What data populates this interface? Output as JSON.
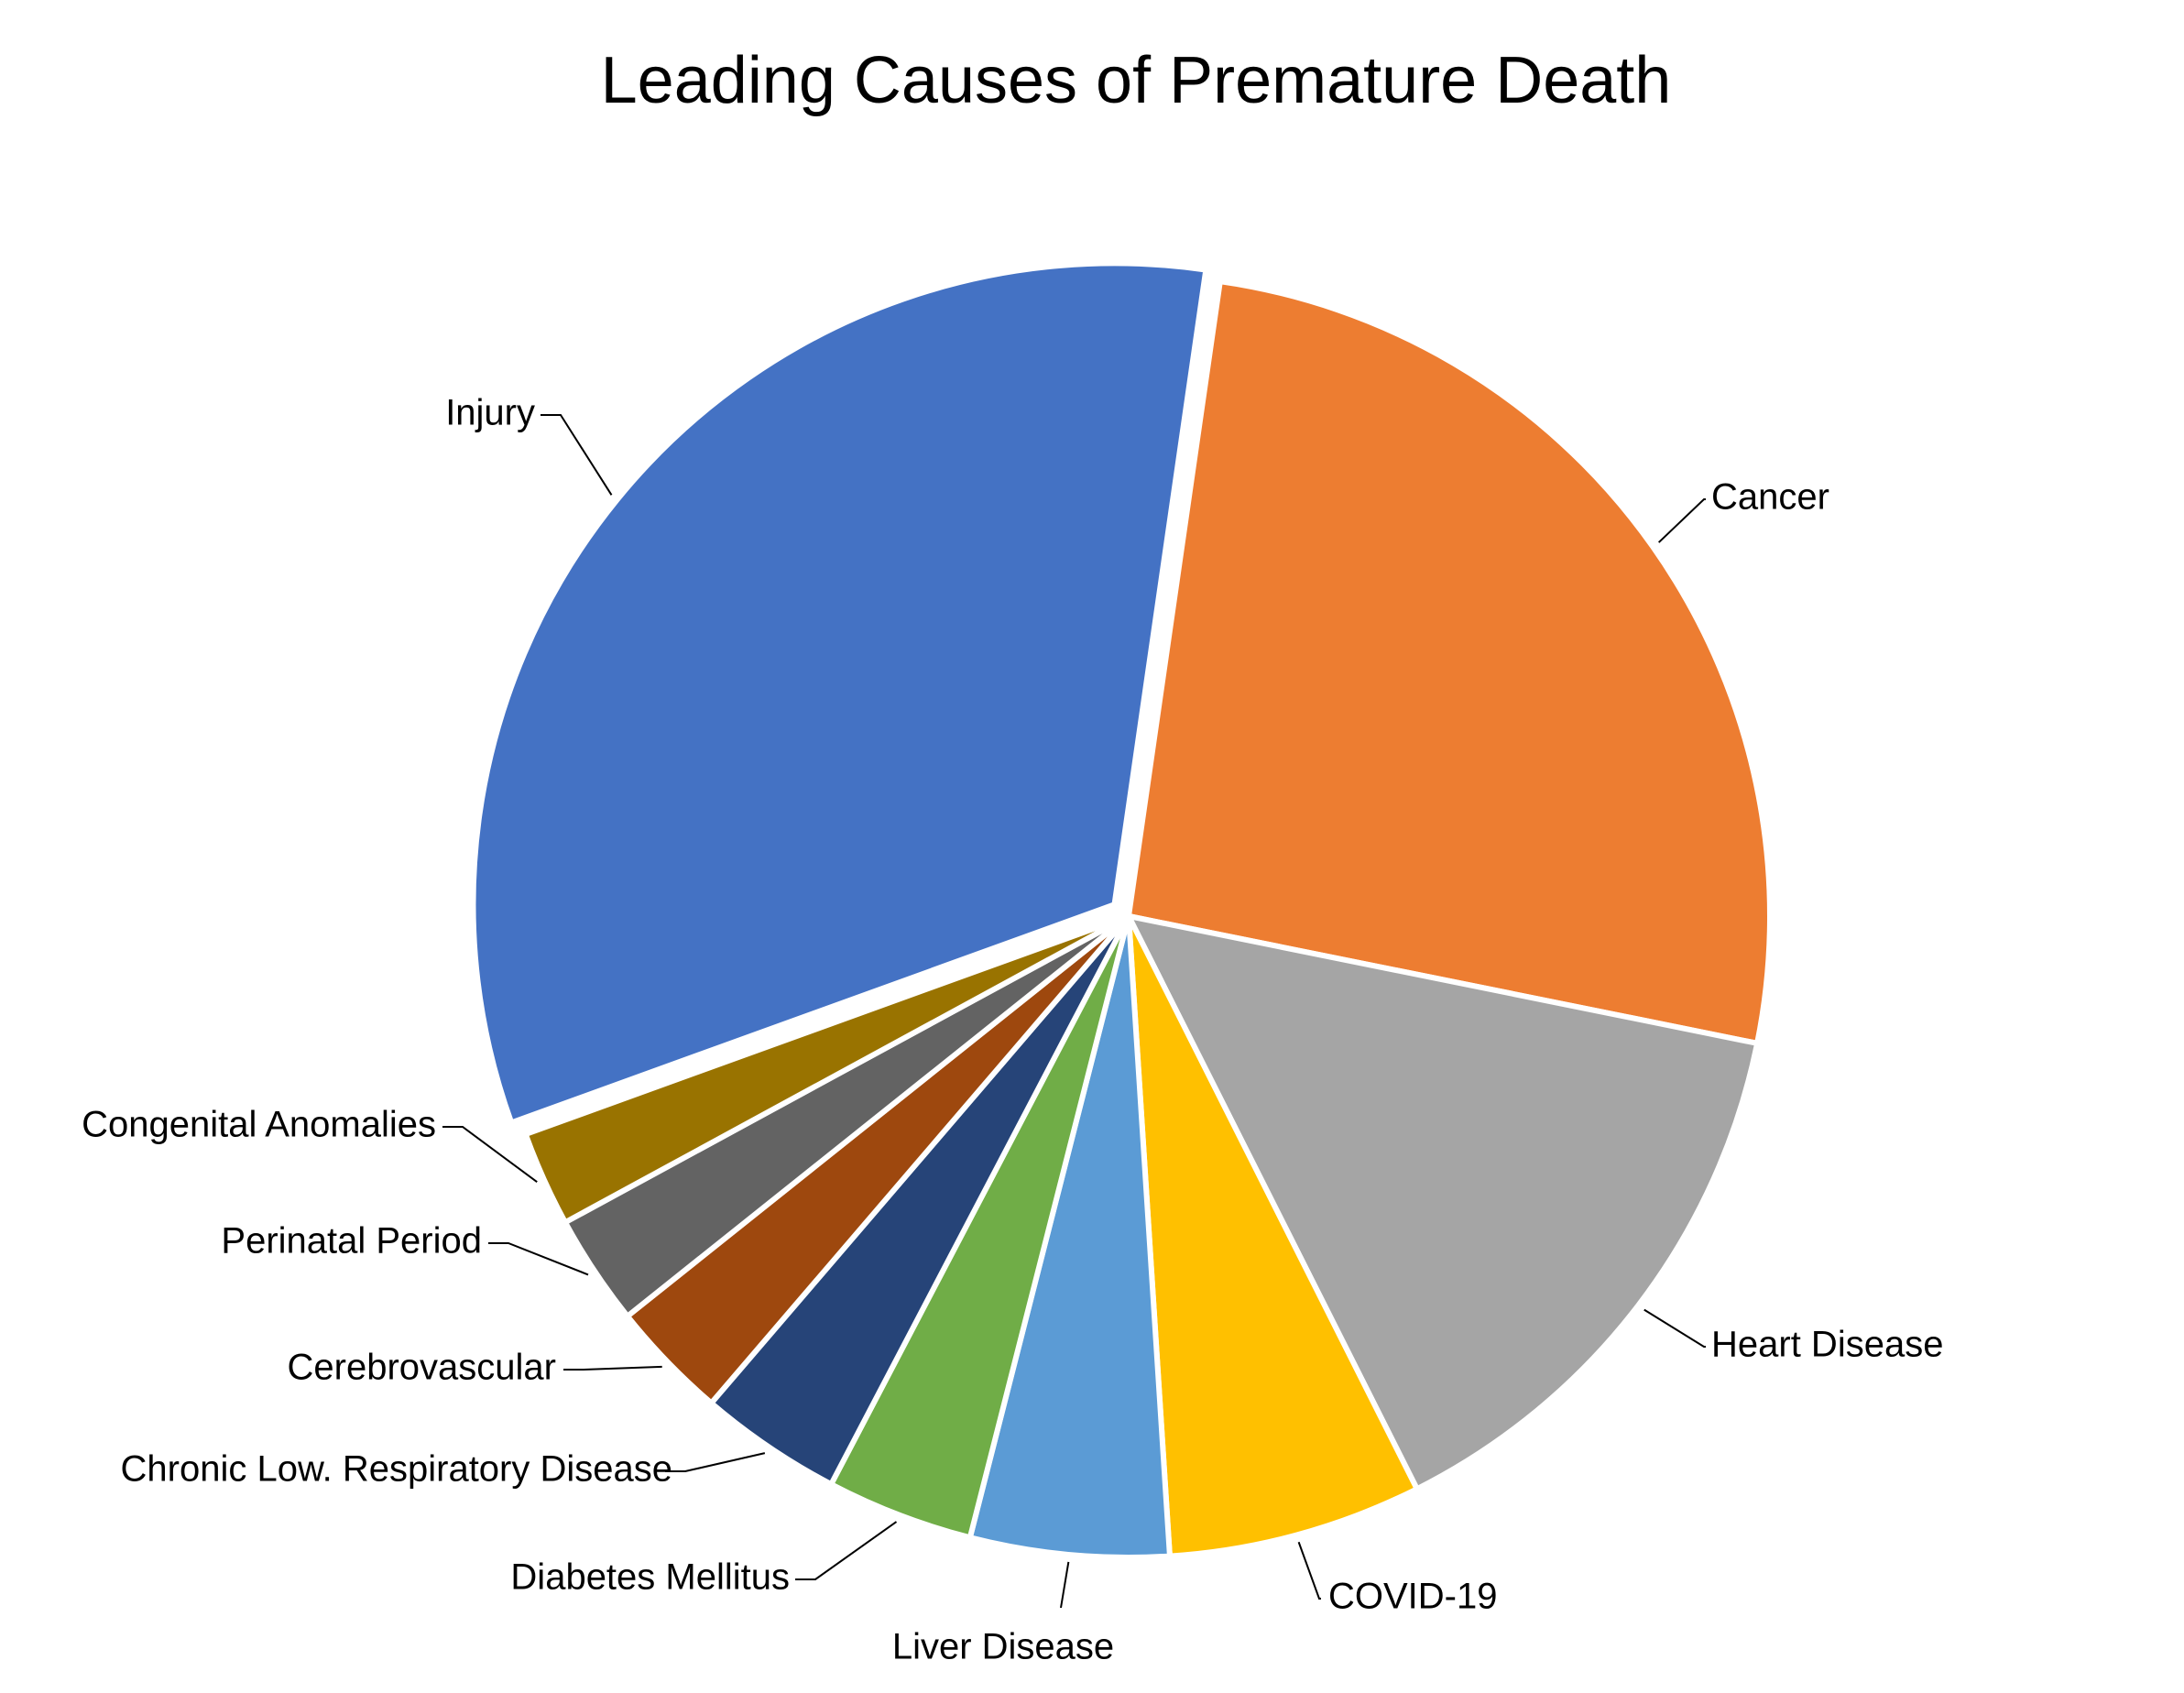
{
  "chart_data": {
    "type": "pie",
    "title": "Leading Causes of Premature Death",
    "legend": "none",
    "labels_on_chart": true,
    "exploded_slice": "Injury",
    "slices": [
      {
        "name": "Cancer",
        "value": 25.9,
        "color": "#ED7D31"
      },
      {
        "name": "Heart Disease",
        "value": 14.4,
        "color": "#A5A5A5"
      },
      {
        "name": "COVID-19",
        "value": 6.4,
        "color": "#FFC000"
      },
      {
        "name": "Liver Disease",
        "value": 5.0,
        "color": "#5B9BD5"
      },
      {
        "name": "Diabetes Mellitus",
        "value": 3.7,
        "color": "#70AD47"
      },
      {
        "name": "Chronic Low. Respiratory Disease",
        "value": 3.6,
        "color": "#264478"
      },
      {
        "name": "Cerebrovascular",
        "value": 3.0,
        "color": "#9E480E"
      },
      {
        "name": "Perinatal Period",
        "value": 2.8,
        "color": "#636363"
      },
      {
        "name": "Congenital Anomalies",
        "value": 2.4,
        "color": "#997300"
      },
      {
        "name": "Injury",
        "value": 32.8,
        "color": "#4472C4"
      }
    ]
  }
}
